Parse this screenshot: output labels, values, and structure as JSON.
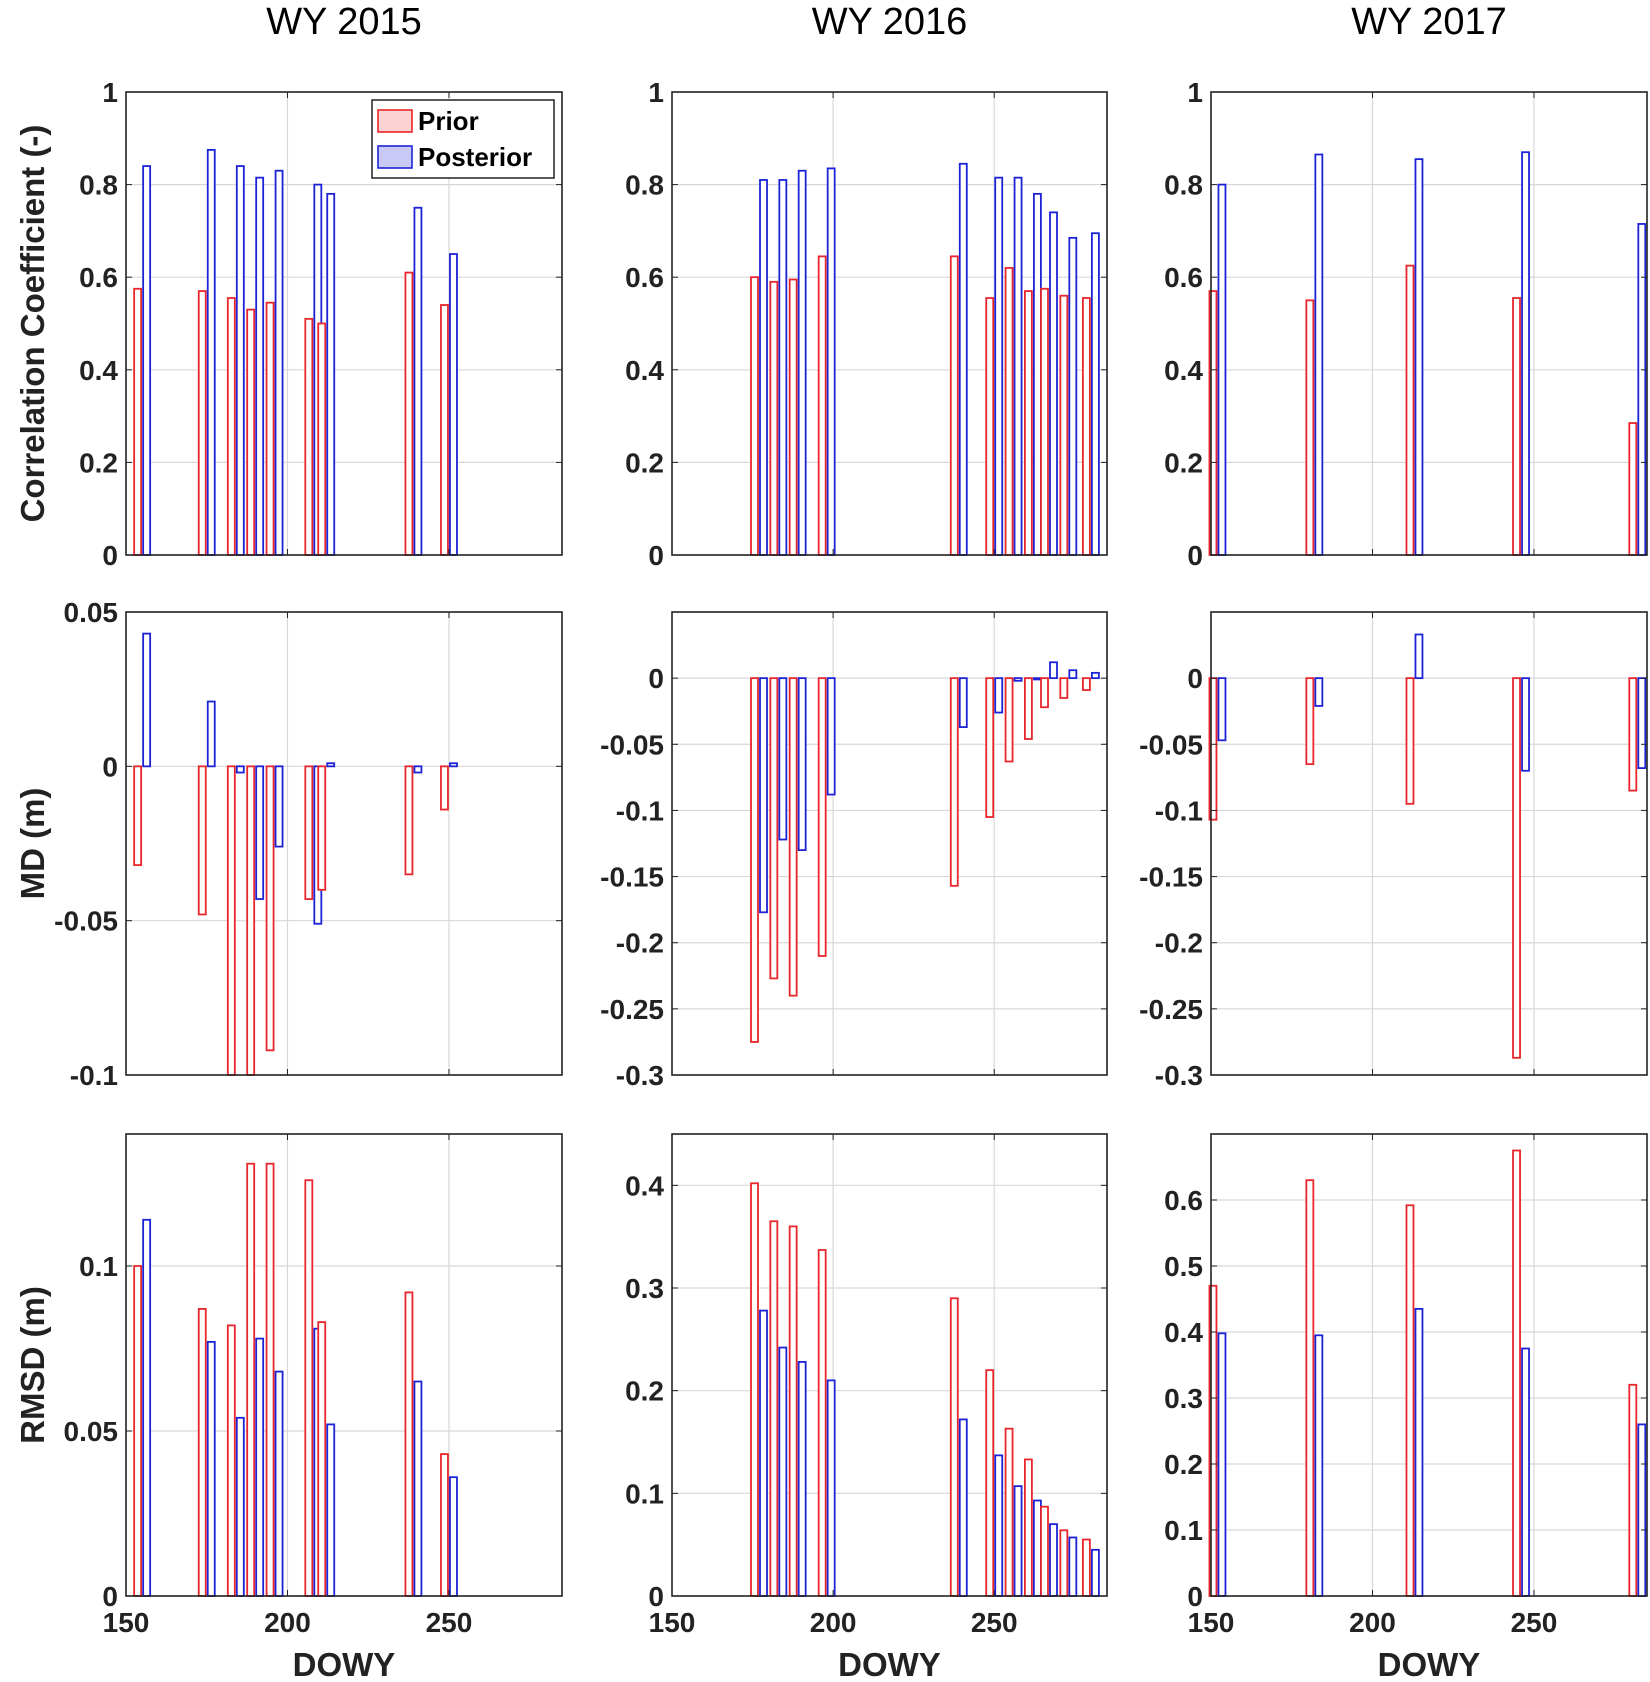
{
  "chart_data": {
    "type": "bar",
    "column_titles": [
      "WY 2015",
      "WY 2016",
      "WY 2017"
    ],
    "xlabel": "DOWY",
    "xlim": [
      150,
      285
    ],
    "xticks": [
      150,
      200,
      250
    ],
    "legend": {
      "placement": "top-right",
      "entries": [
        "Prior",
        "Posterior"
      ]
    },
    "colors": {
      "prior": "#e8262b",
      "prior_fill": "#fbd3d3",
      "posterior": "#1c23d6",
      "posterior_fill": "#c9c9f6"
    },
    "rows": [
      {
        "ylabel": "Correlation Coefficient (-)",
        "key": "corr"
      },
      {
        "ylabel": "MD (m)",
        "key": "md"
      },
      {
        "ylabel": "RMSD (m)",
        "key": "rmsd"
      }
    ],
    "panels": [
      {
        "name": "WY2015-corr",
        "row": 0,
        "col": 0,
        "ylim": [
          0,
          1
        ],
        "yticks": [
          0,
          0.2,
          0.4,
          0.6,
          0.8,
          1
        ],
        "ytick_labels": [
          "0",
          "0.2",
          "0.4",
          "0.6",
          "0.8",
          "1"
        ],
        "x": [
          155,
          175,
          184,
          190,
          196,
          208,
          212,
          239,
          250
        ],
        "prior": [
          0.575,
          0.57,
          0.555,
          0.53,
          0.545,
          0.51,
          0.5,
          0.61,
          0.54
        ],
        "posterior": [
          0.84,
          0.875,
          0.84,
          0.815,
          0.83,
          0.8,
          0.78,
          0.75,
          0.65
        ]
      },
      {
        "name": "WY2016-corr",
        "row": 0,
        "col": 1,
        "ylim": [
          0,
          1
        ],
        "yticks": [
          0,
          0.2,
          0.4,
          0.6,
          0.8,
          1
        ],
        "ytick_labels": [
          "0",
          "0.2",
          "0.4",
          "0.6",
          "0.8",
          "1"
        ],
        "x": [
          177,
          183,
          189,
          198,
          239,
          250,
          256,
          262,
          267,
          273,
          280
        ],
        "prior": [
          0.6,
          0.59,
          0.595,
          0.645,
          0.645,
          0.555,
          0.62,
          0.57,
          0.575,
          0.56,
          0.555
        ],
        "posterior": [
          0.81,
          0.81,
          0.83,
          0.835,
          0.845,
          0.815,
          0.815,
          0.78,
          0.74,
          0.685,
          0.695
        ]
      },
      {
        "name": "WY2017-corr",
        "row": 0,
        "col": 2,
        "ylim": [
          0,
          1
        ],
        "yticks": [
          0,
          0.2,
          0.4,
          0.6,
          0.8,
          1
        ],
        "ytick_labels": [
          "0",
          "0.2",
          "0.4",
          "0.6",
          "0.8",
          "1"
        ],
        "x": [
          152,
          182,
          213,
          246,
          282
        ],
        "prior": [
          0.57,
          0.55,
          0.625,
          0.555,
          0.285
        ],
        "posterior": [
          0.8,
          0.865,
          0.855,
          0.87,
          0.715
        ]
      },
      {
        "name": "WY2015-md",
        "row": 1,
        "col": 0,
        "ylim": [
          -0.1,
          0.05
        ],
        "yticks": [
          -0.1,
          -0.05,
          0,
          0.05
        ],
        "ytick_labels": [
          "-0.1",
          "-0.05",
          "0",
          "0.05"
        ],
        "x": [
          155,
          175,
          184,
          190,
          196,
          208,
          212,
          239,
          250
        ],
        "prior": [
          -0.032,
          -0.048,
          -0.1,
          -0.1,
          -0.092,
          -0.043,
          -0.04,
          -0.035,
          -0.014
        ],
        "posterior": [
          0.043,
          0.021,
          -0.002,
          -0.043,
          -0.026,
          -0.051,
          0.001,
          -0.002,
          0.001
        ]
      },
      {
        "name": "WY2016-md",
        "row": 1,
        "col": 1,
        "ylim": [
          -0.3,
          0.05
        ],
        "yticks": [
          -0.3,
          -0.25,
          -0.2,
          -0.15,
          -0.1,
          -0.05,
          0
        ],
        "ytick_labels": [
          "-0.3",
          "-0.25",
          "-0.2",
          "-0.15",
          "-0.1",
          "-0.05",
          "0"
        ],
        "x": [
          177,
          183,
          189,
          198,
          239,
          250,
          256,
          262,
          267,
          273,
          280
        ],
        "prior": [
          -0.275,
          -0.227,
          -0.24,
          -0.21,
          -0.157,
          -0.105,
          -0.063,
          -0.046,
          -0.022,
          -0.015,
          -0.009
        ],
        "posterior": [
          -0.177,
          -0.122,
          -0.13,
          -0.088,
          -0.037,
          -0.026,
          -0.002,
          -0.001,
          0.012,
          0.006,
          0.004
        ]
      },
      {
        "name": "WY2017-md",
        "row": 1,
        "col": 2,
        "ylim": [
          -0.3,
          0.05
        ],
        "yticks": [
          -0.3,
          -0.25,
          -0.2,
          -0.15,
          -0.1,
          -0.05,
          0
        ],
        "ytick_labels": [
          "-0.3",
          "-0.25",
          "-0.2",
          "-0.15",
          "-0.1",
          "-0.05",
          "0"
        ],
        "x": [
          152,
          182,
          213,
          246,
          282
        ],
        "prior": [
          -0.107,
          -0.065,
          -0.095,
          -0.287,
          -0.085
        ],
        "posterior": [
          -0.047,
          -0.021,
          0.033,
          -0.07,
          -0.068
        ]
      },
      {
        "name": "WY2015-rmsd",
        "row": 2,
        "col": 0,
        "ylim": [
          0,
          0.14
        ],
        "yticks": [
          0,
          0.05,
          0.1
        ],
        "ytick_labels": [
          "0",
          "0.05",
          "0.1"
        ],
        "x": [
          155,
          175,
          184,
          190,
          196,
          208,
          212,
          239,
          250
        ],
        "prior": [
          0.1,
          0.087,
          0.082,
          0.131,
          0.131,
          0.126,
          0.083,
          0.092,
          0.043
        ],
        "posterior": [
          0.114,
          0.077,
          0.054,
          0.078,
          0.068,
          0.081,
          0.052,
          0.065,
          0.036
        ]
      },
      {
        "name": "WY2016-rmsd",
        "row": 2,
        "col": 1,
        "ylim": [
          0,
          0.45
        ],
        "yticks": [
          0,
          0.1,
          0.2,
          0.3,
          0.4
        ],
        "ytick_labels": [
          "0",
          "0.1",
          "0.2",
          "0.3",
          "0.4"
        ],
        "x": [
          177,
          183,
          189,
          198,
          239,
          250,
          256,
          262,
          267,
          273,
          280
        ],
        "prior": [
          0.402,
          0.365,
          0.36,
          0.337,
          0.29,
          0.22,
          0.163,
          0.133,
          0.087,
          0.064,
          0.055
        ],
        "posterior": [
          0.278,
          0.242,
          0.228,
          0.21,
          0.172,
          0.137,
          0.107,
          0.093,
          0.07,
          0.057,
          0.045
        ]
      },
      {
        "name": "WY2017-rmsd",
        "row": 2,
        "col": 2,
        "ylim": [
          0,
          0.7
        ],
        "yticks": [
          0,
          0.1,
          0.2,
          0.3,
          0.4,
          0.5,
          0.6
        ],
        "ytick_labels": [
          "0",
          "0.1",
          "0.2",
          "0.3",
          "0.4",
          "0.5",
          "0.6"
        ],
        "x": [
          152,
          182,
          213,
          246,
          282
        ],
        "prior": [
          0.47,
          0.63,
          0.592,
          0.675,
          0.32
        ],
        "posterior": [
          0.398,
          0.395,
          0.435,
          0.375,
          0.26
        ]
      }
    ]
  }
}
